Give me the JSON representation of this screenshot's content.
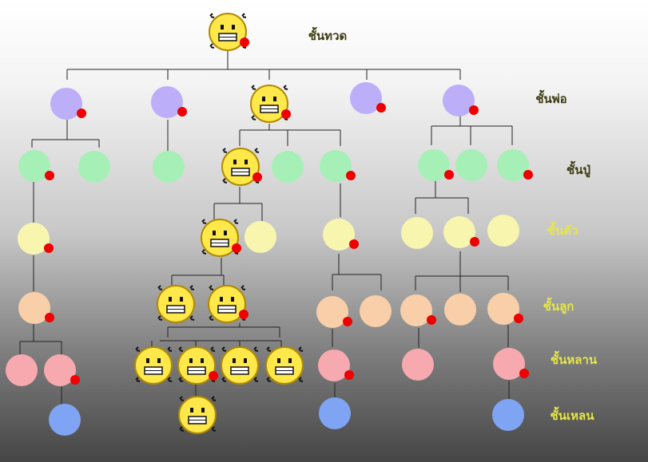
{
  "tiers": [
    {
      "key": "great_grandparent",
      "label": "ชั้นทวด"
    },
    {
      "key": "grandparent",
      "label": "ชั้นพ่อ"
    },
    {
      "key": "parent",
      "label": "ชั้นปู่"
    },
    {
      "key": "self",
      "label": "ชั้นตัว"
    },
    {
      "key": "child",
      "label": "ชั้นลูก"
    },
    {
      "key": "grandchild",
      "label": "ชั้นหลาน"
    },
    {
      "key": "great_grandchild",
      "label": "ชั้นเหลน"
    }
  ],
  "colors": {
    "grandparent": "#bcaef8",
    "parent": "#a6f0b8",
    "self": "#f8f6ae",
    "child": "#f8cfa8",
    "grandchild": "#f7a9b0",
    "great_grandchild": "#7fa4f4",
    "marker": "#ee0000",
    "smiley_face": "#ffe94a",
    "smiley_outline": "#b08a00",
    "line": "#222222",
    "label_dark": "#3b3b10",
    "label_light": "#e6e64a"
  }
}
